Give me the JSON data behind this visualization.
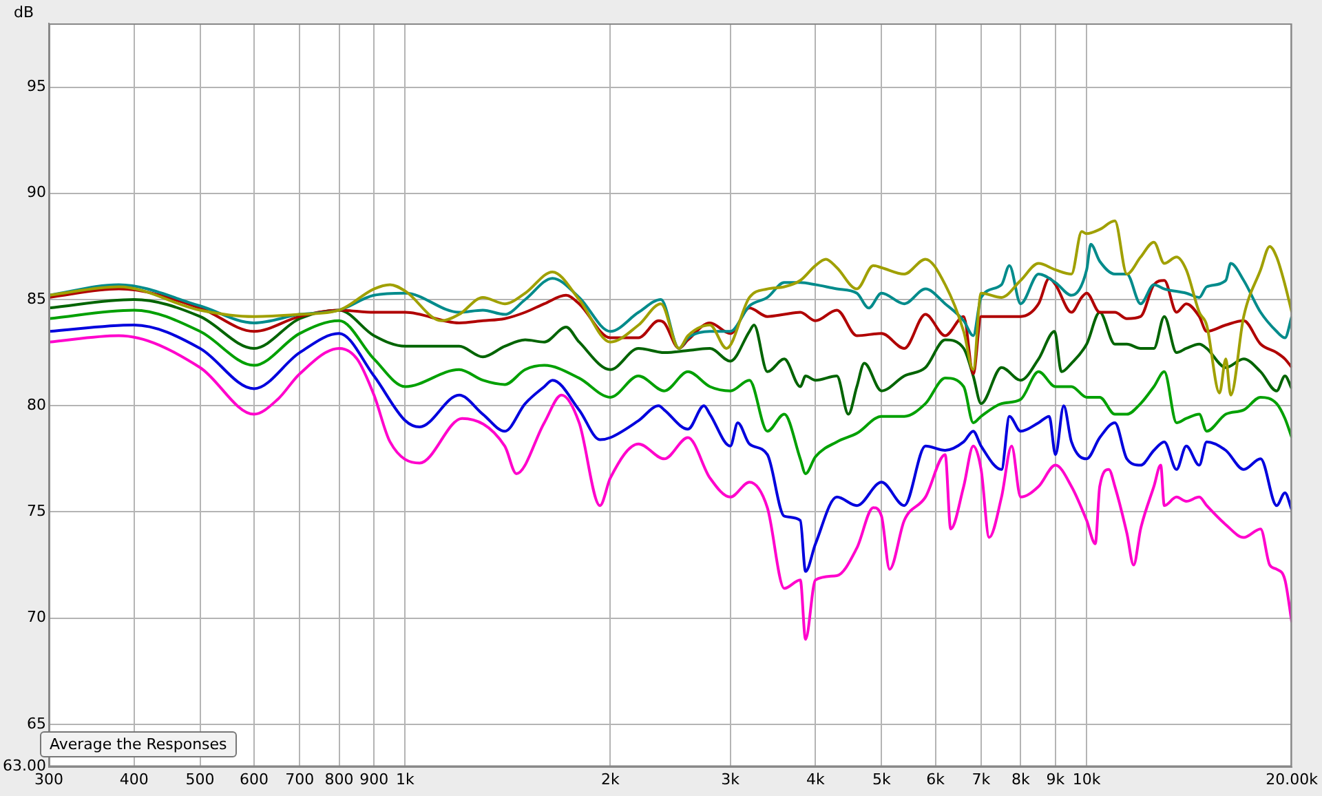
{
  "chart_data": {
    "type": "line",
    "ylabel": "dB",
    "xlim": [
      300,
      20000
    ],
    "ylim": [
      63,
      98
    ],
    "log": "x",
    "grid": true,
    "legend": false,
    "marker": "none",
    "line_style": "solid",
    "xticks": [
      300,
      400,
      500,
      600,
      700,
      800,
      900,
      {
        "value": 1000,
        "label": "1k"
      },
      {
        "value": 2000,
        "label": "2k"
      },
      {
        "value": 3000,
        "label": "3k"
      },
      {
        "value": 4000,
        "label": "4k"
      },
      {
        "value": 5000,
        "label": "5k"
      },
      {
        "value": 6000,
        "label": "6k"
      },
      {
        "value": 7000,
        "label": "7k"
      },
      {
        "value": 8000,
        "label": "8k"
      },
      {
        "value": 9000,
        "label": "9k"
      },
      {
        "value": 10000,
        "label": "10k"
      },
      {
        "value": 20000,
        "label": "20.00k"
      }
    ],
    "yticks": [
      {
        "value": 63,
        "label": "63.00"
      },
      65,
      70,
      75,
      80,
      85,
      90,
      95
    ],
    "annotations": [
      "Average the Responses"
    ],
    "series": [
      {
        "color": "#a0a000",
        "x": [
          300,
          380,
          500,
          600,
          700,
          800,
          900,
          950,
          1000,
          1130,
          1200,
          1300,
          1400,
          1500,
          1645,
          1800,
          2000,
          2200,
          2373,
          2522,
          2600,
          2800,
          2961,
          3200,
          3400,
          3600,
          3800,
          4000,
          4143,
          4300,
          4600,
          4863,
          5000,
          5400,
          5800,
          6200,
          6600,
          6817,
          7000,
          7500,
          8000,
          8500,
          9000,
          9500,
          9833,
          10000,
          10452,
          11000,
          11455,
          12000,
          12551,
          13000,
          13548,
          14000,
          14630,
          15000,
          15667,
          16000,
          16272,
          17000,
          18000,
          18562,
          19000,
          19543,
          20000
        ],
        "values": [
          85.2,
          85.6,
          84.5,
          84.2,
          84.3,
          84.5,
          85.5,
          85.7,
          85.4,
          84.0,
          84.3,
          85.1,
          84.8,
          85.3,
          86.3,
          85.0,
          83.0,
          83.8,
          84.8,
          82.7,
          83.3,
          83.8,
          82.7,
          85.1,
          85.5,
          85.6,
          85.9,
          86.6,
          86.9,
          86.5,
          85.5,
          86.6,
          86.5,
          86.2,
          86.9,
          85.7,
          83.5,
          81.7,
          85.3,
          85.1,
          85.9,
          86.7,
          86.4,
          86.2,
          88.2,
          88.1,
          88.3,
          88.7,
          86.2,
          87.0,
          87.7,
          86.7,
          87.0,
          86.4,
          84.4,
          83.8,
          80.6,
          82.2,
          80.5,
          84.2,
          86.4,
          87.5,
          87.0,
          85.7,
          84.4
        ]
      },
      {
        "color": "#008b8b",
        "x": [
          300,
          380,
          500,
          600,
          700,
          800,
          900,
          1000,
          1200,
          1300,
          1400,
          1500,
          1645,
          1800,
          2000,
          2200,
          2373,
          2522,
          2600,
          2800,
          3000,
          3200,
          3400,
          3600,
          3800,
          4000,
          4300,
          4600,
          4789,
          5000,
          5400,
          5800,
          6200,
          6600,
          6817,
          7000,
          7500,
          7703,
          8000,
          8500,
          9000,
          9500,
          10000,
          10139,
          10452,
          11000,
          11455,
          12000,
          12551,
          13000,
          14000,
          14630,
          15000,
          16000,
          16272,
          17000,
          18000,
          19000,
          19543,
          20000
        ],
        "values": [
          85.2,
          85.7,
          84.7,
          83.9,
          84.3,
          84.5,
          85.2,
          85.3,
          84.4,
          84.5,
          84.3,
          85.0,
          86.0,
          85.1,
          83.5,
          84.4,
          85.0,
          82.7,
          83.2,
          83.5,
          83.5,
          84.7,
          85.1,
          85.8,
          85.8,
          85.7,
          85.5,
          85.3,
          84.6,
          85.3,
          84.8,
          85.5,
          84.8,
          84.0,
          83.3,
          85.1,
          85.7,
          86.6,
          84.8,
          86.2,
          85.8,
          85.2,
          86.4,
          87.6,
          86.8,
          86.2,
          86.2,
          84.8,
          85.7,
          85.5,
          85.3,
          85.1,
          85.6,
          85.9,
          86.7,
          85.9,
          84.4,
          83.5,
          83.2,
          84.2
        ]
      },
      {
        "color": "#b00000",
        "x": [
          300,
          380,
          500,
          600,
          700,
          800,
          900,
          1000,
          1200,
          1300,
          1400,
          1500,
          1600,
          1722,
          1800,
          2000,
          2200,
          2355,
          2400,
          2522,
          2600,
          2800,
          3000,
          3200,
          3400,
          3600,
          3800,
          4000,
          4300,
          4600,
          5000,
          5400,
          5800,
          6200,
          6600,
          6817,
          7000,
          7500,
          8000,
          8500,
          8811,
          9000,
          9500,
          9833,
          10000,
          10452,
          11000,
          11455,
          12000,
          12551,
          13000,
          13548,
          14000,
          14630,
          15000,
          16000,
          17000,
          18000,
          19000,
          19543,
          20000
        ],
        "values": [
          85.1,
          85.5,
          84.6,
          83.5,
          84.2,
          84.5,
          84.4,
          84.4,
          83.9,
          84.0,
          84.1,
          84.4,
          84.8,
          85.2,
          84.8,
          83.2,
          83.2,
          84.0,
          83.9,
          82.7,
          83.1,
          83.9,
          83.4,
          84.6,
          84.2,
          84.3,
          84.4,
          84.0,
          84.5,
          83.3,
          83.4,
          82.7,
          84.3,
          83.3,
          84.2,
          81.5,
          84.2,
          84.2,
          84.2,
          84.8,
          86.0,
          85.7,
          84.4,
          85.1,
          85.3,
          84.4,
          84.4,
          84.1,
          84.2,
          85.7,
          85.9,
          84.4,
          84.8,
          84.2,
          83.5,
          83.8,
          84.0,
          82.9,
          82.5,
          82.2,
          81.8
        ]
      },
      {
        "color": "#006400",
        "x": [
          300,
          400,
          500,
          600,
          700,
          800,
          900,
          1000,
          1200,
          1300,
          1400,
          1500,
          1600,
          1722,
          1800,
          2000,
          2200,
          2400,
          2600,
          2800,
          3000,
          3200,
          3250,
          3400,
          3600,
          3800,
          3868,
          4000,
          4300,
          4471,
          4600,
          4717,
          5000,
          5400,
          5800,
          6200,
          6600,
          6817,
          7000,
          7500,
          8000,
          8500,
          8973,
          9183,
          9500,
          10000,
          10452,
          11000,
          11455,
          12000,
          12551,
          13000,
          13548,
          14000,
          14630,
          15000,
          16000,
          17000,
          18000,
          19000,
          19543,
          20000
        ],
        "values": [
          84.6,
          85.0,
          84.2,
          82.7,
          84.1,
          84.5,
          83.3,
          82.8,
          82.8,
          82.3,
          82.8,
          83.1,
          83.0,
          83.7,
          83.0,
          81.7,
          82.7,
          82.5,
          82.6,
          82.7,
          82.1,
          83.5,
          83.8,
          81.6,
          82.2,
          80.9,
          81.4,
          81.2,
          81.4,
          79.6,
          80.9,
          82.0,
          80.7,
          81.4,
          81.8,
          83.1,
          82.7,
          81.4,
          80.1,
          81.8,
          81.2,
          82.2,
          83.5,
          81.6,
          82.0,
          82.9,
          84.4,
          82.9,
          82.9,
          82.7,
          82.7,
          84.2,
          82.5,
          82.7,
          82.9,
          82.7,
          81.8,
          82.2,
          81.6,
          80.7,
          81.4,
          80.8
        ]
      },
      {
        "color": "#00a000",
        "x": [
          300,
          400,
          500,
          600,
          700,
          800,
          900,
          1000,
          1200,
          1300,
          1400,
          1500,
          1600,
          1800,
          2000,
          2200,
          2400,
          2600,
          2800,
          3000,
          3200,
          3400,
          3600,
          3800,
          3868,
          4000,
          4300,
          4600,
          5000,
          5400,
          5800,
          6200,
          6600,
          6817,
          7000,
          7500,
          8000,
          8500,
          9000,
          9500,
          10000,
          10452,
          11000,
          11455,
          12000,
          12551,
          13000,
          13548,
          14000,
          14630,
          15000,
          16000,
          17000,
          18000,
          19000,
          19543,
          20000
        ],
        "values": [
          84.1,
          84.5,
          83.5,
          81.9,
          83.4,
          84.0,
          82.2,
          80.9,
          81.7,
          81.2,
          81.0,
          81.7,
          81.9,
          81.3,
          80.4,
          81.4,
          80.7,
          81.6,
          80.9,
          80.7,
          81.2,
          78.8,
          79.6,
          77.5,
          76.8,
          77.6,
          78.3,
          78.7,
          79.5,
          79.5,
          80.1,
          81.3,
          80.9,
          79.2,
          79.5,
          80.1,
          80.3,
          81.6,
          80.9,
          80.9,
          80.4,
          80.4,
          79.6,
          79.6,
          80.1,
          80.9,
          81.6,
          79.2,
          79.4,
          79.6,
          78.8,
          79.6,
          79.8,
          80.4,
          80.1,
          79.4,
          78.5
        ]
      },
      {
        "color": "#0000dd",
        "x": [
          300,
          400,
          500,
          600,
          700,
          800,
          900,
          1000,
          1050,
          1200,
          1300,
          1400,
          1500,
          1600,
          1645,
          1800,
          1931,
          2000,
          2200,
          2355,
          2400,
          2600,
          2744,
          2800,
          3000,
          3076,
          3200,
          3400,
          3600,
          3800,
          3868,
          4000,
          4300,
          4600,
          5000,
          5400,
          5800,
          6200,
          6600,
          6817,
          7000,
          7500,
          7703,
          8000,
          8500,
          8811,
          9000,
          9254,
          9500,
          10000,
          10452,
          11000,
          11455,
          12000,
          12551,
          13000,
          13548,
          14000,
          14630,
          15000,
          16000,
          17000,
          18000,
          19000,
          19543,
          20000
        ],
        "values": [
          83.5,
          83.8,
          82.7,
          80.8,
          82.5,
          83.4,
          81.4,
          79.3,
          79.0,
          80.5,
          79.6,
          78.8,
          80.1,
          80.9,
          81.2,
          79.8,
          78.4,
          78.5,
          79.3,
          80.0,
          79.8,
          78.9,
          80.0,
          79.6,
          78.1,
          79.2,
          78.2,
          77.7,
          74.8,
          74.6,
          72.2,
          73.5,
          75.7,
          75.3,
          76.4,
          75.3,
          78.1,
          77.9,
          78.3,
          78.8,
          78.1,
          77.0,
          79.5,
          78.8,
          79.2,
          79.5,
          77.7,
          80.0,
          78.3,
          77.5,
          78.5,
          79.2,
          77.5,
          77.2,
          77.9,
          78.3,
          77.0,
          78.1,
          77.2,
          78.3,
          77.9,
          77.0,
          77.5,
          75.3,
          75.9,
          75.1
        ]
      },
      {
        "color": "#ff00cc",
        "x": [
          300,
          380,
          500,
          600,
          650,
          700,
          800,
          850,
          900,
          950,
          1050,
          1212,
          1400,
          1456,
          1600,
          1696,
          1800,
          1931,
          2000,
          2200,
          2400,
          2600,
          2800,
          3000,
          3200,
          3400,
          3600,
          3800,
          3868,
          4000,
          4300,
          4600,
          4863,
          5000,
          5139,
          5400,
          5800,
          6200,
          6317,
          6600,
          6817,
          7000,
          7194,
          7500,
          7761,
          8000,
          8500,
          9000,
          9500,
          10000,
          10295,
          10452,
          10777,
          11000,
          11455,
          11720,
          12000,
          12551,
          12843,
          13000,
          13548,
          14000,
          14630,
          15000,
          16000,
          17000,
          18000,
          18562,
          19000,
          19543,
          20000
        ],
        "values": [
          83.0,
          83.3,
          81.8,
          79.6,
          80.3,
          81.5,
          82.7,
          82.2,
          80.5,
          78.3,
          77.3,
          79.4,
          78.1,
          76.8,
          79.2,
          80.5,
          79.2,
          75.3,
          76.6,
          78.2,
          77.5,
          78.5,
          76.6,
          75.7,
          76.4,
          75.2,
          71.4,
          71.8,
          69.0,
          71.8,
          72.0,
          73.3,
          75.2,
          74.8,
          72.3,
          74.6,
          75.7,
          77.7,
          74.2,
          76.2,
          78.1,
          77.0,
          73.8,
          75.7,
          78.1,
          75.7,
          76.2,
          77.2,
          76.2,
          74.6,
          73.5,
          76.2,
          77.0,
          76.2,
          74.0,
          72.5,
          74.2,
          76.2,
          77.2,
          75.3,
          75.7,
          75.5,
          75.7,
          75.3,
          74.4,
          73.8,
          74.2,
          72.5,
          72.3,
          71.8,
          69.8
        ]
      }
    ]
  }
}
